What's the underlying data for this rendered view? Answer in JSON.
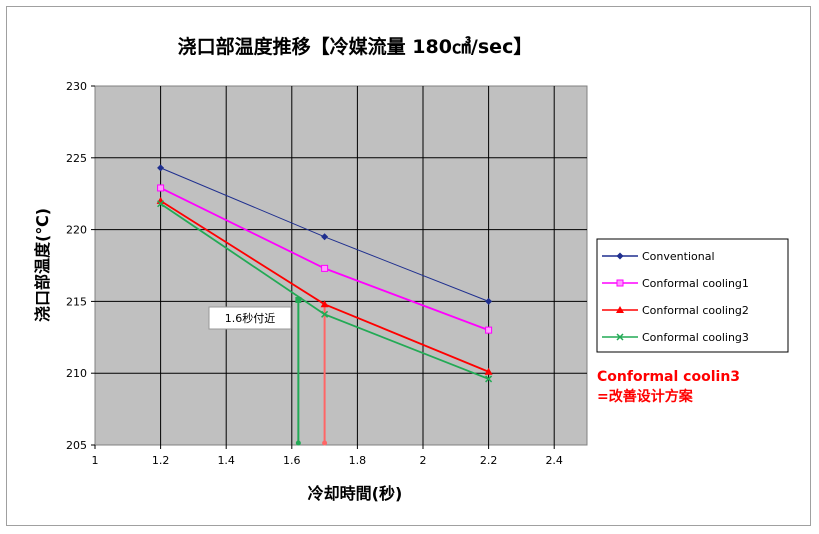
{
  "chart_data": {
    "type": "line",
    "title": "浇口部温度推移【冷媒流量 180㎤/sec】",
    "xlabel": "冷却時間(秒)",
    "ylabel": "浇口部温度(℃)",
    "xlim": [
      1,
      2.5
    ],
    "ylim": [
      205,
      230
    ],
    "x_ticks": [
      1,
      1.2,
      1.4,
      1.6,
      1.8,
      2,
      2.2,
      2.4
    ],
    "x_tick_labels": [
      "1",
      "1.2",
      "1.4",
      "1.6",
      "1.8",
      "2",
      "2.2",
      "2.4"
    ],
    "y_ticks": [
      205,
      210,
      215,
      220,
      225,
      230
    ],
    "y_tick_labels": [
      "205",
      "210",
      "215",
      "220",
      "225",
      "230"
    ],
    "grid": true,
    "legend_position": "right",
    "series": [
      {
        "name": "Conventional",
        "color": "#1f2f8f",
        "marker": "diamond",
        "x": [
          1.2,
          1.7,
          2.2
        ],
        "values": [
          224.3,
          219.5,
          215.0
        ]
      },
      {
        "name": "Conformal cooling1",
        "color": "#ff00ff",
        "marker": "square",
        "x": [
          1.2,
          1.7,
          2.2
        ],
        "values": [
          222.9,
          217.3,
          213.0
        ]
      },
      {
        "name": "Conformal cooling2",
        "color": "#ff0000",
        "marker": "triangle",
        "x": [
          1.2,
          1.7,
          2.2
        ],
        "values": [
          222.0,
          214.8,
          210.1
        ]
      },
      {
        "name": "Conformal cooling3",
        "color": "#22aa55",
        "marker": "x",
        "x": [
          1.2,
          1.7,
          2.2
        ],
        "values": [
          221.8,
          214.1,
          209.6
        ]
      }
    ],
    "drop_lines": [
      {
        "color": "#22aa55",
        "x": 1.62,
        "y_top": 215.1
      },
      {
        "color": "#ff6666",
        "x": 1.7,
        "y_top": 214.8
      }
    ],
    "callout": {
      "text": "1.6秒付近"
    },
    "note": {
      "line1": "Conformal coolin3",
      "line2": "=改善设计方案",
      "color": "#ff0000"
    },
    "plot_background": "#c0c0c0"
  }
}
